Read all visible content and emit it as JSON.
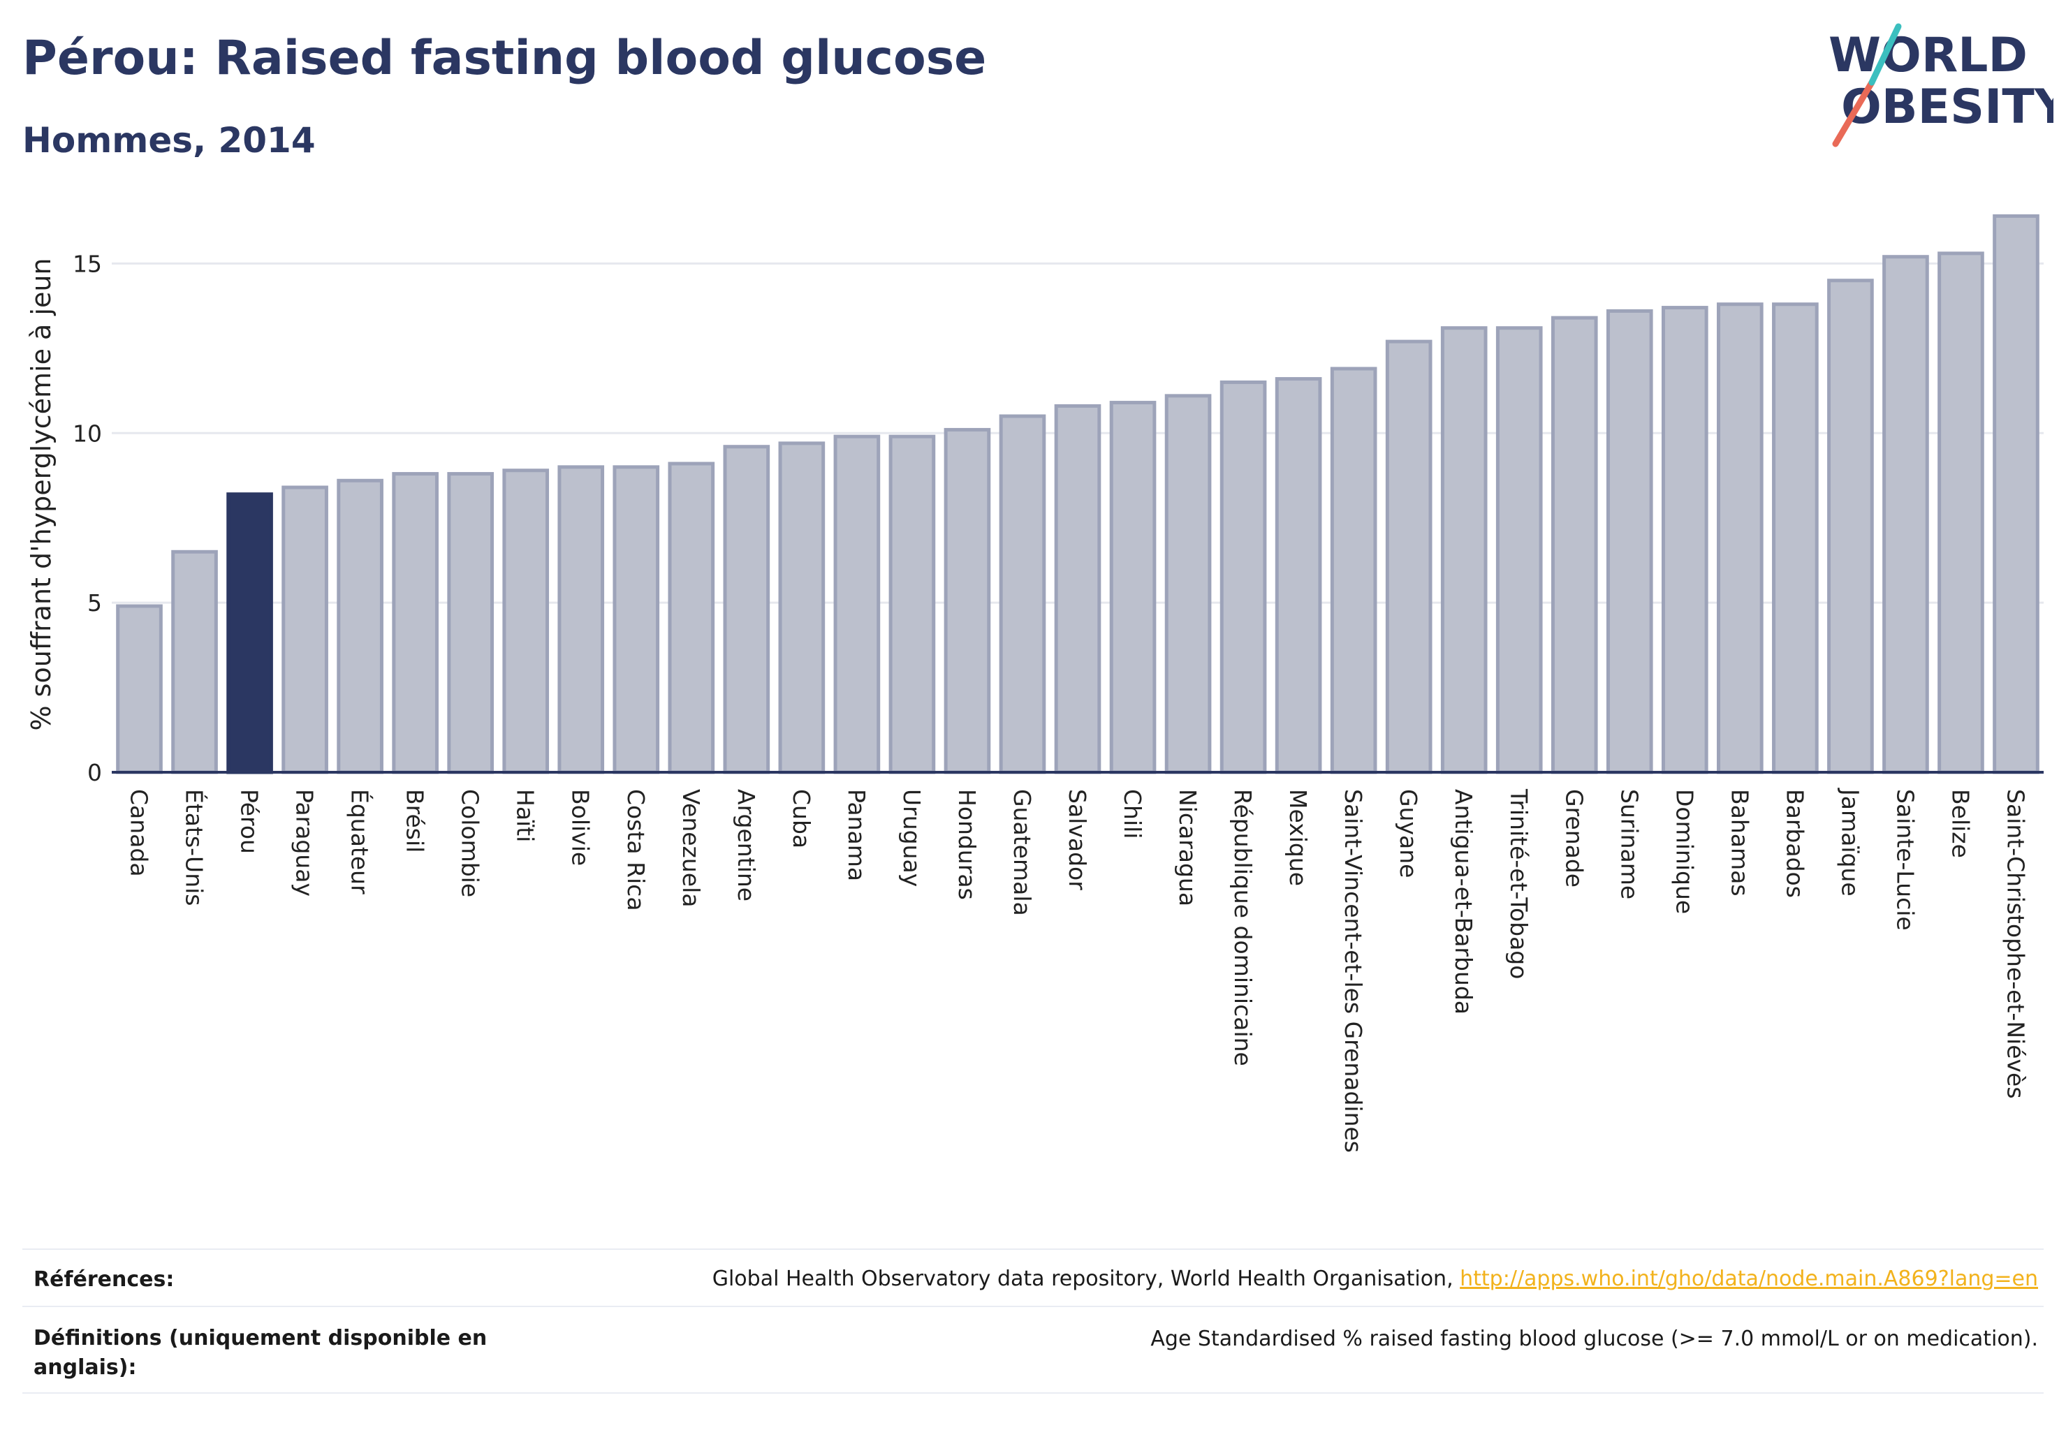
{
  "header": {
    "title": "Pérou: Raised fasting blood glucose",
    "subtitle": "Hommes, 2014",
    "logo_line1": "WORLD",
    "logo_line2": "OBESITY"
  },
  "colors": {
    "title": "#2b3762",
    "highlight_bar": "#2b3762",
    "bar_fill": "#bcc0cd",
    "bar_stroke": "#9da3b9",
    "grid": "#e6e8ee",
    "logo_teal": "#3bbfbf",
    "logo_coral": "#e96a57",
    "link": "#f2b21c"
  },
  "chart_data": {
    "type": "bar",
    "ylabel": "% souffrant d'hyperglycémie à jeun",
    "xlabel": "",
    "ylim": [
      0,
      16.8
    ],
    "yticks": [
      0,
      5,
      10,
      15
    ],
    "grid": true,
    "highlight": "Pérou",
    "categories": [
      "Canada",
      "États-Unis",
      "Pérou",
      "Paraguay",
      "Équateur",
      "Brésil",
      "Colombie",
      "Haïti",
      "Bolivie",
      "Costa Rica",
      "Venezuela",
      "Argentine",
      "Cuba",
      "Panama",
      "Uruguay",
      "Honduras",
      "Guatemala",
      "Salvador",
      "Chili",
      "Nicaragua",
      "République dominicaine",
      "Mexique",
      "Saint-Vincent-et-les Grenadines",
      "Guyane",
      "Antigua-et-Barbuda",
      "Trinité-et-Tobago",
      "Grenade",
      "Suriname",
      "Dominique",
      "Bahamas",
      "Barbados",
      "Jamaïque",
      "Sainte-Lucie",
      "Belize",
      "Saint-Christophe-et-Niévès"
    ],
    "values": [
      4.9,
      6.5,
      8.2,
      8.4,
      8.6,
      8.8,
      8.8,
      8.9,
      9.0,
      9.0,
      9.1,
      9.6,
      9.7,
      9.9,
      9.9,
      10.1,
      10.5,
      10.8,
      10.9,
      11.1,
      11.5,
      11.6,
      11.9,
      12.7,
      13.1,
      13.1,
      13.4,
      13.6,
      13.7,
      13.8,
      13.8,
      14.5,
      15.2,
      15.3,
      16.4
    ]
  },
  "footer": {
    "references_label": "Références:",
    "references_text": "Global Health Observatory data repository, World Health Organisation, ",
    "references_link": "http://apps.who.int/gho/data/node.main.A869?lang=en",
    "definitions_label_line1": "Définitions (uniquement disponible en",
    "definitions_label_line2": "anglais):",
    "definitions_text": "Age Standardised % raised fasting blood glucose (>= 7.0 mmol/L or on medication)."
  }
}
